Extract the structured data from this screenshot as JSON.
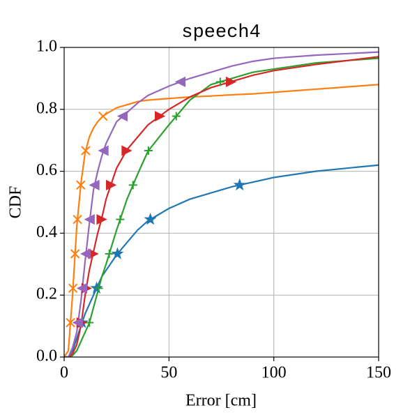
{
  "chart_data": {
    "type": "line",
    "title": "speech4",
    "x_label": "Error [cm]",
    "y_label": "CDF",
    "x": [
      0,
      2,
      4,
      6,
      8,
      10,
      12,
      14,
      16,
      18,
      20,
      25,
      30,
      35,
      40,
      50,
      60,
      70,
      80,
      90,
      100,
      120,
      150
    ],
    "series": [
      {
        "color": "#1f77b4",
        "marker": "star",
        "values": [
          0,
          0,
          0.02,
          0.06,
          0.1,
          0.14,
          0.17,
          0.2,
          0.23,
          0.26,
          0.28,
          0.33,
          0.37,
          0.41,
          0.44,
          0.48,
          0.51,
          0.53,
          0.55,
          0.565,
          0.58,
          0.6,
          0.62
        ]
      },
      {
        "color": "#ff7f0e",
        "marker": "x",
        "values": [
          0,
          0.02,
          0.2,
          0.42,
          0.56,
          0.66,
          0.71,
          0.74,
          0.76,
          0.775,
          0.785,
          0.805,
          0.815,
          0.825,
          0.83,
          0.835,
          0.84,
          0.843,
          0.847,
          0.85,
          0.855,
          0.865,
          0.88
        ]
      },
      {
        "color": "#2ca02c",
        "marker": "plus",
        "values": [
          0,
          0,
          0.005,
          0.02,
          0.05,
          0.08,
          0.11,
          0.16,
          0.21,
          0.26,
          0.3,
          0.41,
          0.51,
          0.59,
          0.665,
          0.75,
          0.83,
          0.88,
          0.9,
          0.92,
          0.93,
          0.95,
          0.965
        ]
      },
      {
        "color": "#d62728",
        "marker": "right",
        "values": [
          0,
          0,
          0.01,
          0.04,
          0.1,
          0.2,
          0.28,
          0.34,
          0.4,
          0.45,
          0.51,
          0.61,
          0.67,
          0.71,
          0.75,
          0.8,
          0.84,
          0.87,
          0.89,
          0.91,
          0.925,
          0.945,
          0.97
        ]
      },
      {
        "color": "#9467bd",
        "marker": "left",
        "values": [
          0,
          0,
          0.03,
          0.08,
          0.18,
          0.31,
          0.43,
          0.54,
          0.6,
          0.65,
          0.69,
          0.76,
          0.79,
          0.82,
          0.845,
          0.875,
          0.9,
          0.92,
          0.94,
          0.955,
          0.965,
          0.975,
          0.985
        ]
      }
    ],
    "xlim": [
      0,
      150
    ],
    "xticks": [
      0,
      50,
      100,
      150
    ],
    "ylim": [
      0,
      1
    ],
    "yticks": [
      {
        "value": 0,
        "label": "0.0"
      },
      {
        "value": 0.2,
        "label": "0.2"
      },
      {
        "value": 0.4,
        "label": "0.4"
      },
      {
        "value": 0.6,
        "label": "0.6"
      },
      {
        "value": 0.8,
        "label": "0.8"
      },
      {
        "value": 1,
        "label": "1.0"
      }
    ],
    "grid": true
  }
}
